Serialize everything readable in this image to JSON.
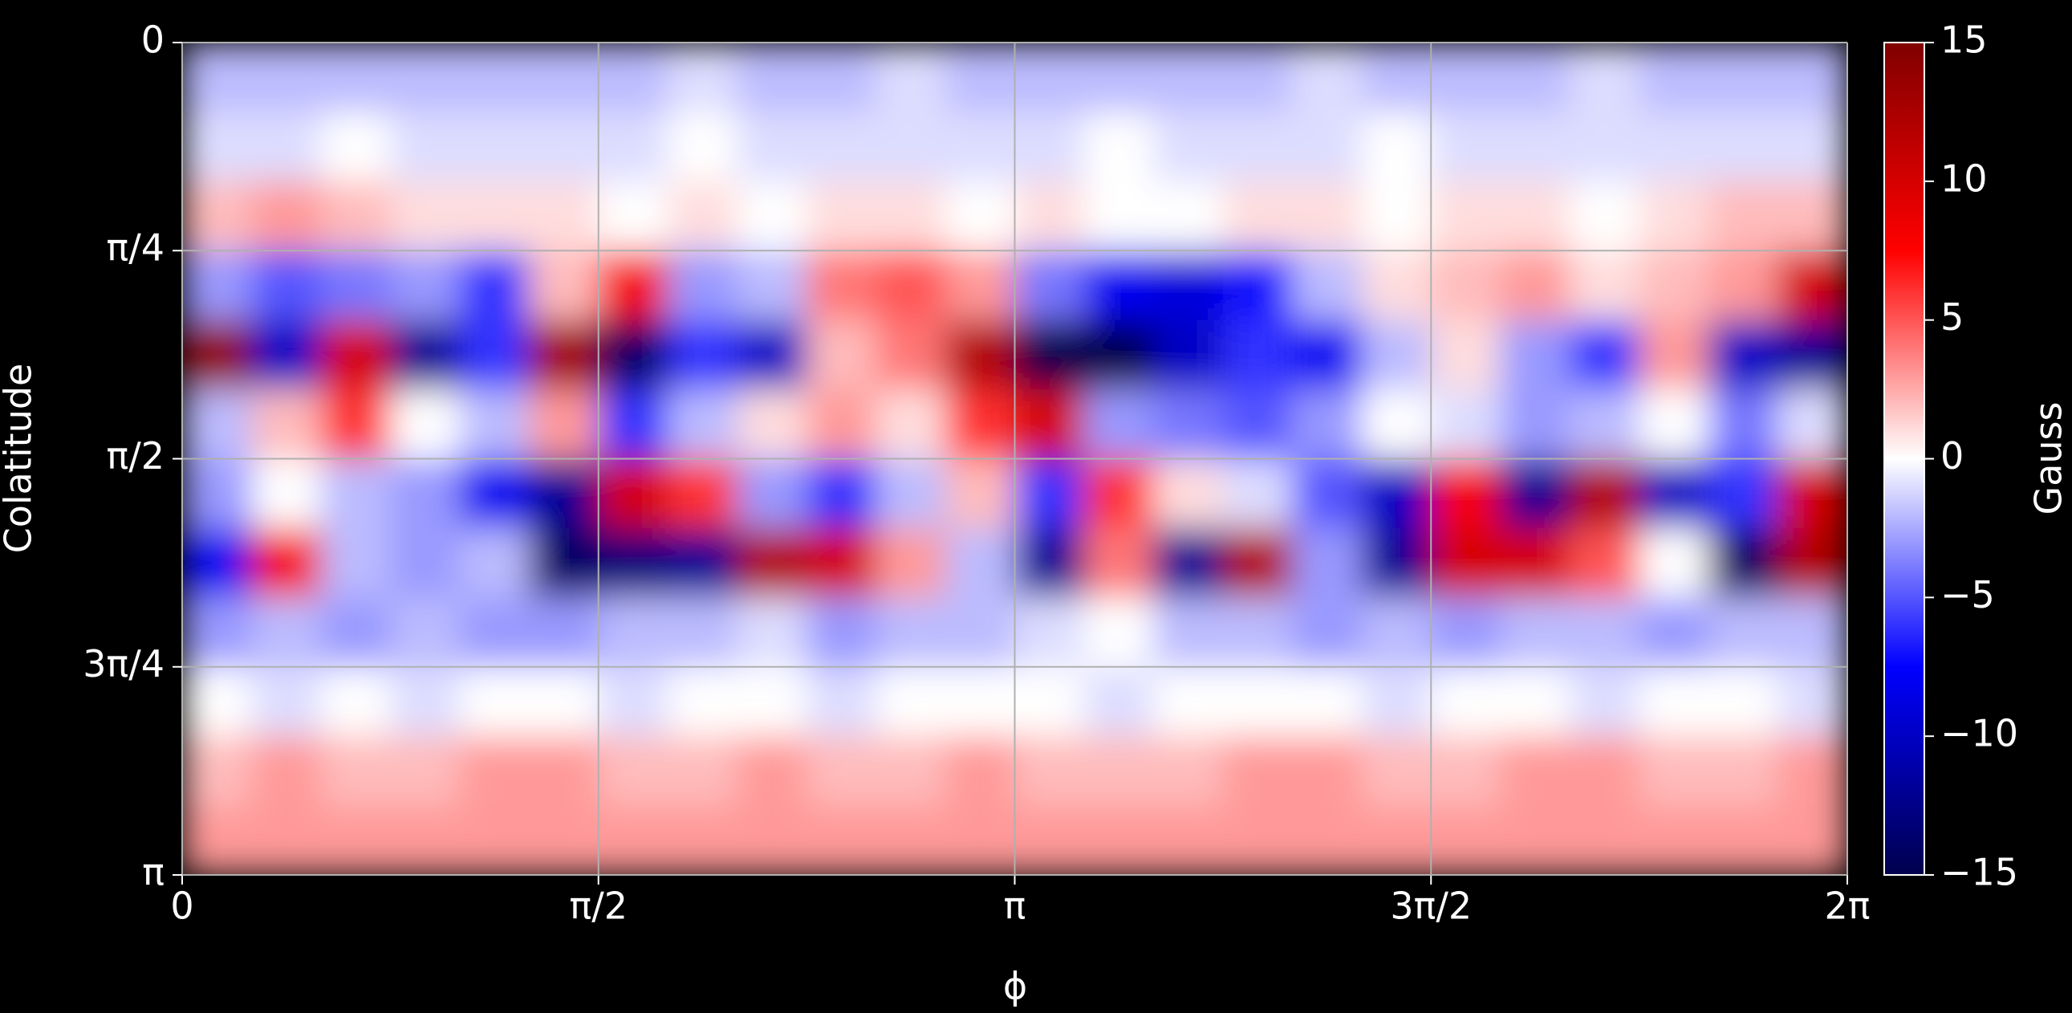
{
  "chart_data": {
    "type": "heatmap",
    "xlabel": "ϕ",
    "ylabel": "Colatitude",
    "xlim": [
      0,
      6.283185
    ],
    "ylim": [
      3.141593,
      0
    ],
    "xticks": [
      {
        "value": 0,
        "label": "0"
      },
      {
        "value": 1.570796,
        "label": "π/2"
      },
      {
        "value": 3.141593,
        "label": "π"
      },
      {
        "value": 4.712389,
        "label": "3π/2"
      },
      {
        "value": 6.283185,
        "label": "2π"
      }
    ],
    "yticks": [
      {
        "value": 0,
        "label": "0"
      },
      {
        "value": 0.785398,
        "label": "π/4"
      },
      {
        "value": 1.570796,
        "label": "π/2"
      },
      {
        "value": 2.356194,
        "label": "3π/4"
      },
      {
        "value": 3.141593,
        "label": "π"
      }
    ],
    "grid": true,
    "colormap": "seismic",
    "colorbar": {
      "label": "Gauss",
      "lim": [
        -15,
        15
      ],
      "ticks": [
        15,
        10,
        5,
        0,
        {
          "value": -5,
          "label": "−5"
        },
        {
          "value": -10,
          "label": "−10"
        },
        {
          "value": -15,
          "label": "−15"
        }
      ]
    },
    "z": [
      [
        -2,
        -2,
        -2,
        -2,
        -2,
        -2,
        -2,
        -1,
        -2,
        -2,
        -1,
        -2,
        -2,
        -2,
        -2,
        -2,
        -1,
        -2,
        -2,
        -2,
        -1,
        -2,
        -2,
        -2
      ],
      [
        -1,
        -1,
        0,
        -1,
        -1,
        -1,
        -1,
        0,
        -1,
        -1,
        -1,
        -1,
        -1,
        0,
        -1,
        -1,
        -1,
        0,
        -1,
        -1,
        -1,
        -1,
        -1,
        -1
      ],
      [
        2,
        3,
        2,
        1,
        1,
        1,
        0,
        1,
        0,
        1,
        1,
        0,
        1,
        0,
        0,
        1,
        1,
        0,
        1,
        1,
        0,
        1,
        2,
        2
      ],
      [
        -3,
        -5,
        -4,
        -3,
        -6,
        2,
        8,
        -3,
        -2,
        4,
        5,
        3,
        -4,
        -8,
        -9,
        -7,
        -2,
        1,
        2,
        3,
        1,
        2,
        3,
        10
      ],
      [
        14,
        -10,
        10,
        -12,
        -6,
        13,
        -14,
        -6,
        -10,
        2,
        4,
        12,
        -15,
        -15,
        -10,
        -6,
        -8,
        -2,
        1,
        -3,
        -6,
        3,
        -10,
        -12
      ],
      [
        -2,
        2,
        6,
        0,
        -2,
        3,
        -6,
        -2,
        1,
        3,
        1,
        6,
        10,
        -3,
        -4,
        -5,
        -3,
        0,
        -1,
        -3,
        -2,
        0,
        -4,
        -1
      ],
      [
        -3,
        0,
        -2,
        -3,
        -8,
        -12,
        10,
        6,
        -3,
        -6,
        -2,
        2,
        -6,
        6,
        1,
        -1,
        -5,
        -10,
        8,
        -12,
        12,
        -10,
        -6,
        10
      ],
      [
        -8,
        8,
        -2,
        -3,
        -2,
        -14,
        -13,
        -12,
        12,
        10,
        3,
        -2,
        -12,
        4,
        -12,
        12,
        -3,
        -12,
        10,
        10,
        5,
        0,
        -14,
        12
      ],
      [
        -3,
        -2,
        -3,
        -2,
        -3,
        -3,
        -2,
        -2,
        -1,
        -3,
        -2,
        -2,
        -1,
        0,
        -2,
        -2,
        -3,
        -2,
        -3,
        -2,
        -2,
        -3,
        -2,
        -2
      ],
      [
        0,
        -1,
        0,
        -1,
        0,
        0,
        -1,
        0,
        0,
        -1,
        0,
        0,
        0,
        -1,
        0,
        0,
        0,
        -1,
        0,
        0,
        -1,
        0,
        0,
        -1
      ],
      [
        2,
        3,
        2,
        2,
        3,
        3,
        2,
        2,
        3,
        2,
        2,
        3,
        2,
        2,
        2,
        3,
        3,
        2,
        2,
        3,
        3,
        2,
        2,
        3
      ],
      [
        3,
        3,
        3,
        3,
        3,
        3,
        3,
        3,
        3,
        3,
        3,
        3,
        3,
        3,
        3,
        3,
        3,
        3,
        3,
        3,
        3,
        3,
        3,
        3
      ]
    ]
  }
}
